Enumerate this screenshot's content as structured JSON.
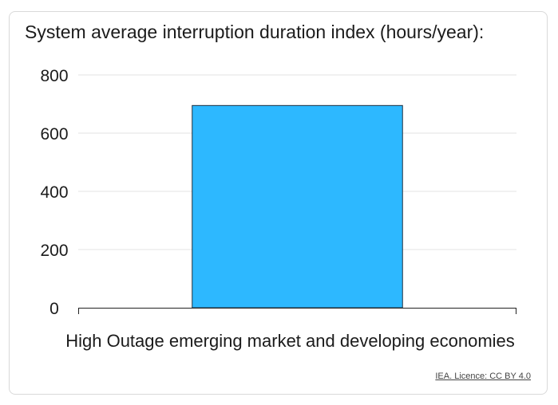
{
  "chart_data": {
    "type": "bar",
    "title": "System average interruption duration index (hours/year):",
    "categories": [
      "High Outage emerging market and developing economies"
    ],
    "values": [
      695
    ],
    "ylim": [
      0,
      800
    ],
    "yticks": [
      0,
      200,
      400,
      600,
      800
    ],
    "grid": true,
    "legend": "none",
    "xlabel": "",
    "ylabel": ""
  },
  "colors": {
    "bar": "#2db8ff",
    "bar_outline": "#1f3140",
    "grid": "#e3e3e3",
    "axis": "#222222",
    "text": "#1b1b1b"
  },
  "source": {
    "label": "IEA. Licence: CC BY 4.0"
  }
}
